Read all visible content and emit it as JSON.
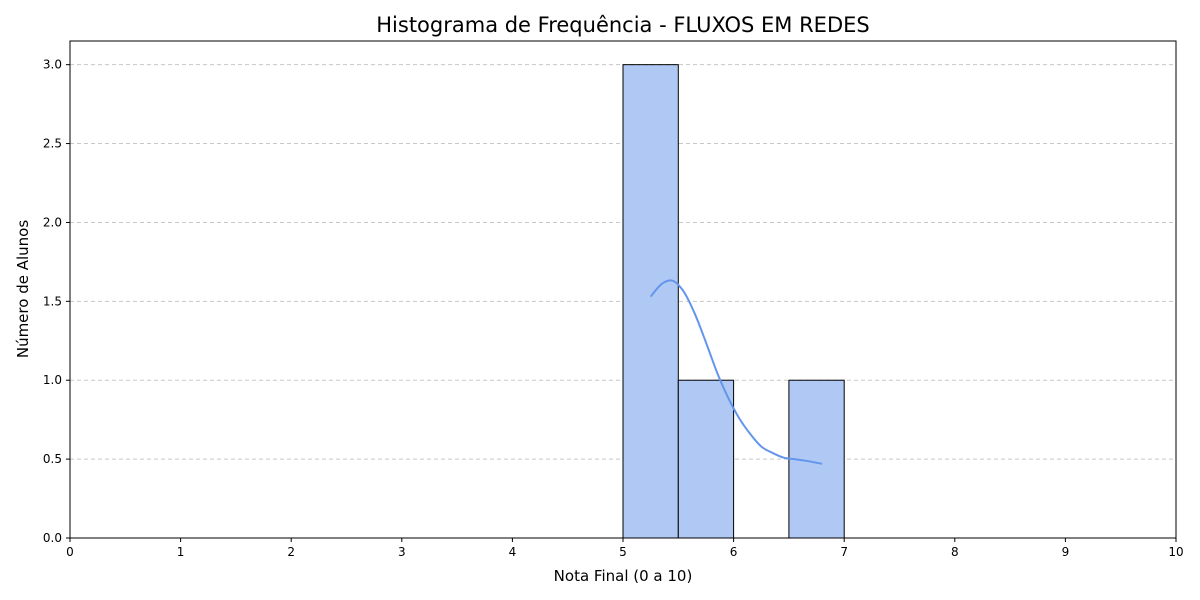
{
  "chart_data": {
    "type": "bar",
    "title": "Histograma de Frequência - FLUXOS EM REDES",
    "xlabel": "Nota Final (0 a 10)",
    "ylabel": "Número de Alunos",
    "xlim": [
      0,
      10
    ],
    "ylim": [
      0,
      3.15
    ],
    "xticks": [
      "0",
      "1",
      "2",
      "3",
      "4",
      "5",
      "6",
      "7",
      "8",
      "9",
      "10"
    ],
    "yticks": [
      "0.0",
      "0.5",
      "1.0",
      "1.5",
      "2.0",
      "2.5",
      "3.0"
    ],
    "grid": "y-dashed",
    "bins": [
      {
        "x0": 5.0,
        "x1": 5.5,
        "count": 3
      },
      {
        "x0": 5.5,
        "x1": 6.0,
        "count": 1
      },
      {
        "x0": 6.5,
        "x1": 7.0,
        "count": 1
      }
    ],
    "kde": {
      "x": [
        5.25,
        5.35,
        5.45,
        5.55,
        5.65,
        5.75,
        5.85,
        5.95,
        6.05,
        6.15,
        6.25,
        6.35,
        6.45,
        6.55,
        6.65,
        6.8
      ],
      "y": [
        1.53,
        1.61,
        1.63,
        1.56,
        1.42,
        1.24,
        1.05,
        0.89,
        0.76,
        0.66,
        0.58,
        0.54,
        0.51,
        0.5,
        0.49,
        0.47
      ]
    },
    "colors": {
      "bar_fill": "#b0c9f4",
      "bar_edge": "#000000",
      "kde_line": "#6495ed",
      "grid": "#c8c8c8"
    }
  }
}
